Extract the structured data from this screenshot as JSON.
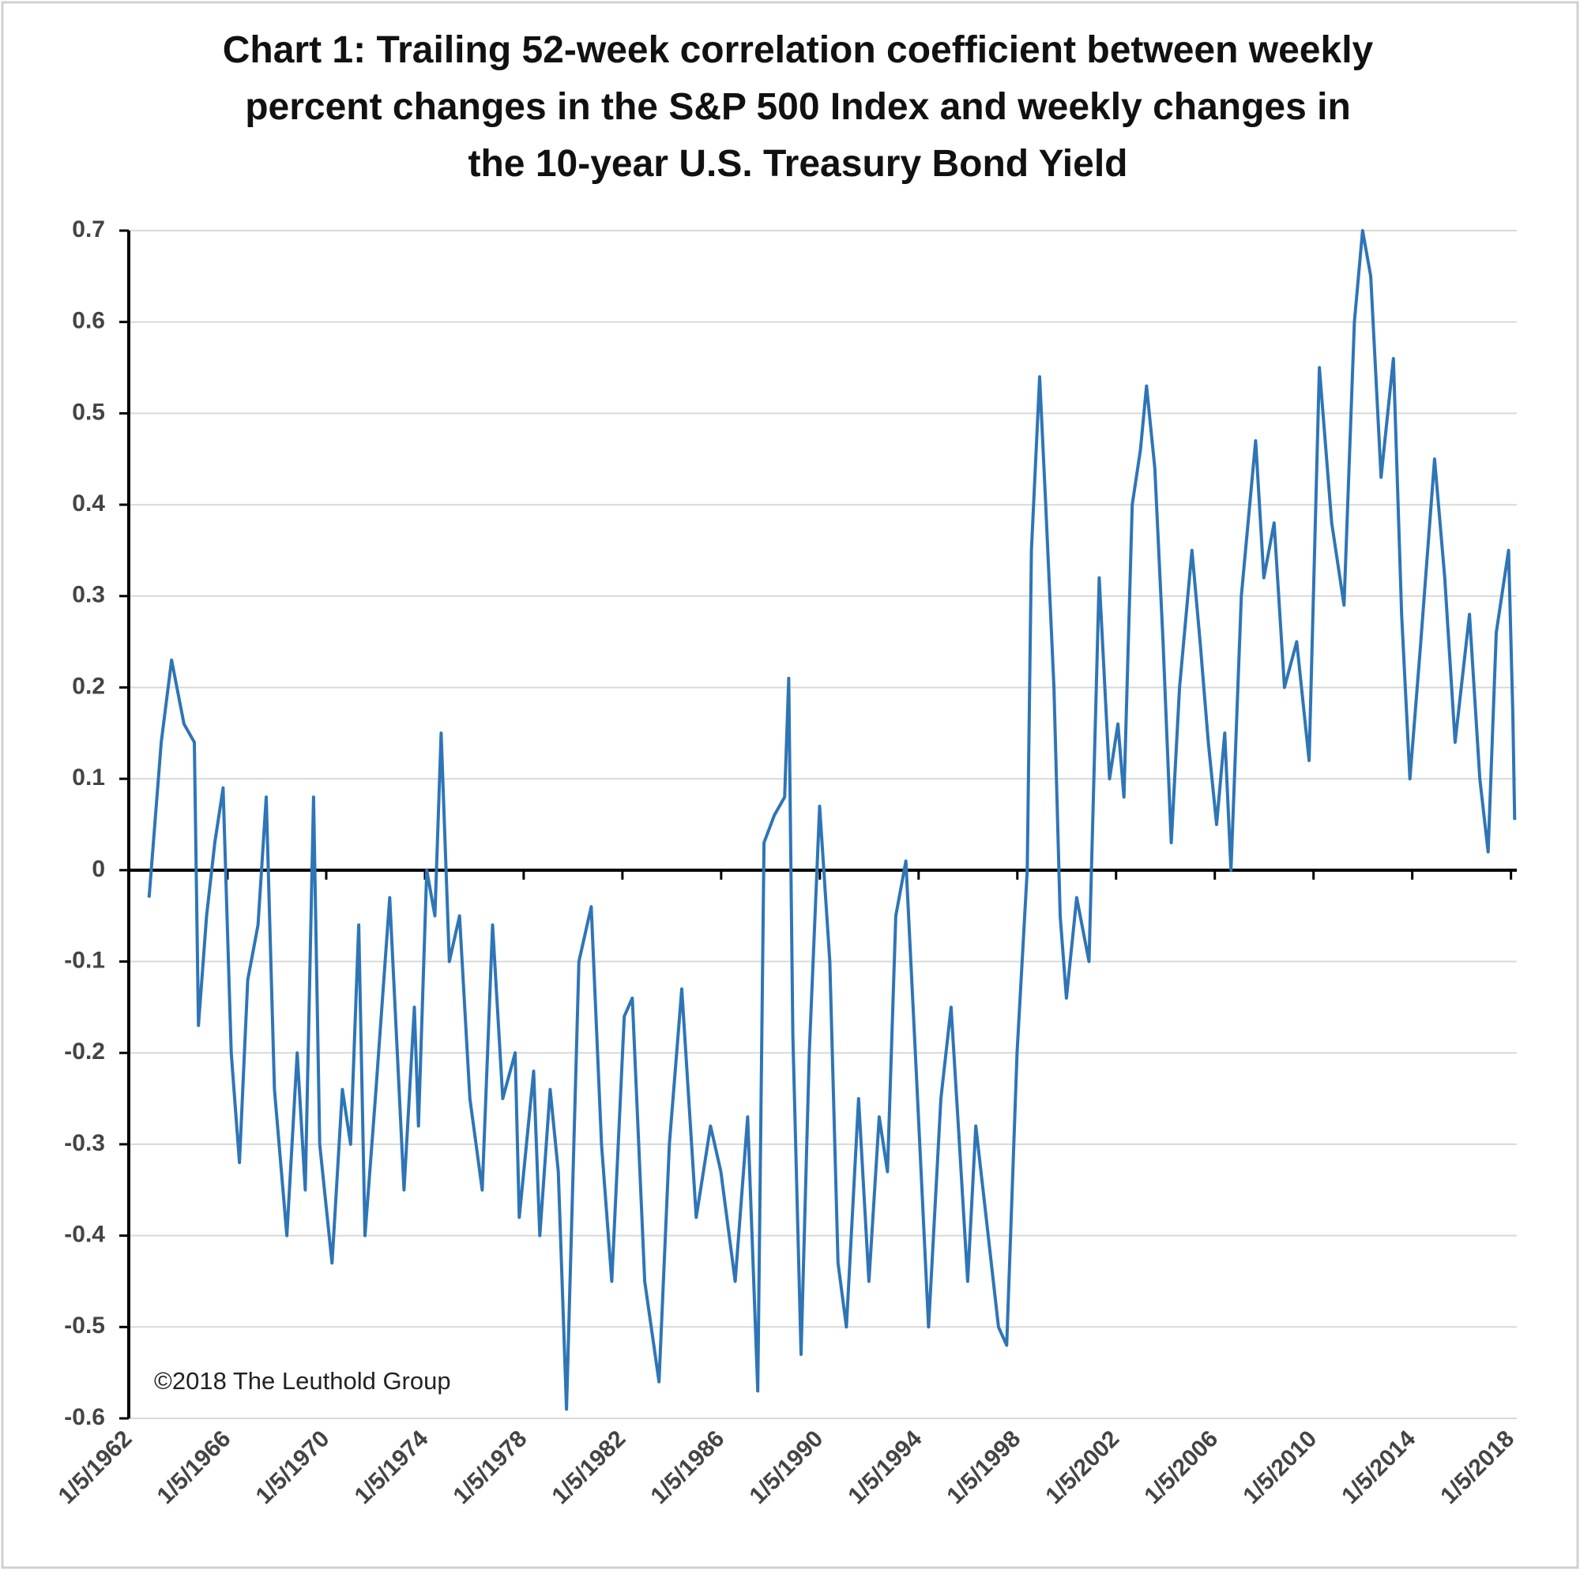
{
  "chart_data": {
    "type": "line",
    "title": "Chart 1: Trailing 52-week correlation coefficient between weekly percent changes in the S&P 500 Index and weekly changes in the 10-year U.S. Treasury Bond Yield",
    "annotation": "©2018 The Leuthold Group",
    "grid": true,
    "x": [
      "11/1/1962",
      "5/1/1963",
      "10/1/1963",
      "4/1/1964",
      "9/1/1964",
      "11/1/1964",
      "3/1/1965",
      "7/1/1965",
      "11/1/1965",
      "3/1/1966",
      "7/1/1966",
      "11/1/1966",
      "4/1/1967",
      "8/1/1967",
      "12/1/1967",
      "6/1/1968",
      "11/1/1968",
      "3/1/1969",
      "7/1/1969",
      "10/1/1969",
      "4/1/1970",
      "9/1/1970",
      "1/1/1971",
      "5/1/1971",
      "8/1/1971",
      "1/1/1972",
      "8/1/1972",
      "3/1/1973",
      "8/1/1973",
      "10/1/1973",
      "2/1/1974",
      "6/1/1974",
      "9/1/1974",
      "1/1/1975",
      "6/1/1975",
      "11/1/1975",
      "5/1/1976",
      "10/1/1976",
      "3/1/1977",
      "9/1/1977",
      "11/1/1977",
      "6/1/1978",
      "9/1/1978",
      "2/1/1979",
      "6/1/1979",
      "10/1/1979",
      "4/1/1980",
      "10/1/1980",
      "3/1/1981",
      "8/1/1981",
      "2/1/1982",
      "6/1/1982",
      "12/1/1982",
      "7/1/1983",
      "12/1/1983",
      "6/1/1984",
      "1/1/1985",
      "8/1/1985",
      "1/1/1986",
      "8/1/1986",
      "2/1/1987",
      "7/1/1987",
      "10/1/1987",
      "3/1/1988",
      "8/1/1988",
      "10/1/1988",
      "12/1/1988",
      "4/1/1989",
      "8/1/1989",
      "1/1/1990",
      "6/1/1990",
      "10/1/1990",
      "2/1/1991",
      "8/1/1991",
      "1/1/1992",
      "6/1/1992",
      "10/1/1992",
      "2/1/1993",
      "7/1/1993",
      "12/1/1993",
      "6/1/1994",
      "12/1/1994",
      "5/1/1995",
      "9/1/1995",
      "1/1/1996",
      "5/1/1996",
      "10/1/1996",
      "4/1/1997",
      "8/1/1997",
      "1/1/1998",
      "6/1/1998",
      "8/1/1998",
      "12/1/1998",
      "3/1/1999",
      "7/1/1999",
      "10/1/1999",
      "1/1/2000",
      "6/1/2000",
      "12/1/2000",
      "5/1/2001",
      "10/1/2001",
      "2/1/2002",
      "5/1/2002",
      "9/1/2002",
      "1/1/2003",
      "4/1/2003",
      "8/1/2003",
      "12/1/2003",
      "4/1/2004",
      "8/1/2004",
      "2/1/2005",
      "6/1/2005",
      "10/1/2005",
      "2/1/2006",
      "6/1/2006",
      "9/1/2006",
      "2/1/2007",
      "9/1/2007",
      "1/1/2008",
      "6/1/2008",
      "11/1/2008",
      "5/1/2009",
      "11/1/2009",
      "4/1/2010",
      "10/1/2010",
      "4/1/2011",
      "9/1/2011",
      "1/1/2012",
      "5/1/2012",
      "10/1/2012",
      "4/1/2013",
      "8/1/2013",
      "12/1/2013",
      "5/1/2014",
      "12/1/2014",
      "5/1/2015",
      "10/1/2015",
      "5/1/2016",
      "10/1/2016",
      "2/1/2017",
      "6/1/2017",
      "12/1/2017",
      "2/1/2018",
      "3/1/2018"
    ],
    "series": [
      {
        "name": "Correlation",
        "color": "#2e75b6",
        "values": [
          -0.03,
          0.14,
          0.23,
          0.16,
          0.14,
          -0.17,
          -0.05,
          0.03,
          0.09,
          -0.2,
          -0.32,
          -0.12,
          -0.06,
          0.08,
          -0.24,
          -0.4,
          -0.2,
          -0.35,
          0.08,
          -0.3,
          -0.43,
          -0.24,
          -0.3,
          -0.06,
          -0.4,
          -0.25,
          -0.03,
          -0.35,
          -0.15,
          -0.28,
          0.0,
          -0.05,
          0.15,
          -0.1,
          -0.05,
          -0.25,
          -0.35,
          -0.06,
          -0.25,
          -0.2,
          -0.38,
          -0.22,
          -0.4,
          -0.24,
          -0.33,
          -0.59,
          -0.1,
          -0.04,
          -0.3,
          -0.45,
          -0.16,
          -0.14,
          -0.45,
          -0.56,
          -0.3,
          -0.13,
          -0.38,
          -0.28,
          -0.33,
          -0.45,
          -0.27,
          -0.57,
          0.03,
          0.06,
          0.08,
          0.21,
          -0.18,
          -0.53,
          -0.2,
          0.07,
          -0.1,
          -0.43,
          -0.5,
          -0.25,
          -0.45,
          -0.27,
          -0.33,
          -0.05,
          0.01,
          -0.22,
          -0.5,
          -0.25,
          -0.15,
          -0.3,
          -0.45,
          -0.28,
          -0.38,
          -0.5,
          -0.52,
          -0.2,
          0.0,
          0.35,
          0.54,
          0.4,
          0.2,
          -0.05,
          -0.14,
          -0.03,
          -0.1,
          0.32,
          0.1,
          0.16,
          0.08,
          0.4,
          0.46,
          0.53,
          0.44,
          0.25,
          0.03,
          0.2,
          0.35,
          0.25,
          0.14,
          0.05,
          0.15,
          0.0,
          0.3,
          0.47,
          0.32,
          0.38,
          0.2,
          0.25,
          0.12,
          0.55,
          0.38,
          0.29,
          0.6,
          0.7,
          0.65,
          0.43,
          0.56,
          0.28,
          0.1,
          0.24,
          0.45,
          0.32,
          0.14,
          0.28,
          0.1,
          0.02,
          0.26,
          0.35,
          0.17,
          0.055
        ]
      }
    ],
    "xlim": [
      "1/5/1962",
      "4/1/2018"
    ],
    "xticks": [
      "1/5/1962",
      "1/5/1966",
      "1/5/1970",
      "1/5/1974",
      "1/5/1978",
      "1/5/1982",
      "1/5/1986",
      "1/5/1990",
      "1/5/1994",
      "1/5/1998",
      "1/5/2002",
      "1/5/2006",
      "1/5/2010",
      "1/5/2014",
      "1/5/2018"
    ],
    "ylim": [
      -0.6,
      0.7
    ],
    "yticks": [
      -0.6,
      -0.5,
      -0.4,
      -0.3,
      -0.2,
      -0.1,
      0,
      0.1,
      0.2,
      0.3,
      0.4,
      0.5,
      0.6,
      0.7
    ]
  }
}
